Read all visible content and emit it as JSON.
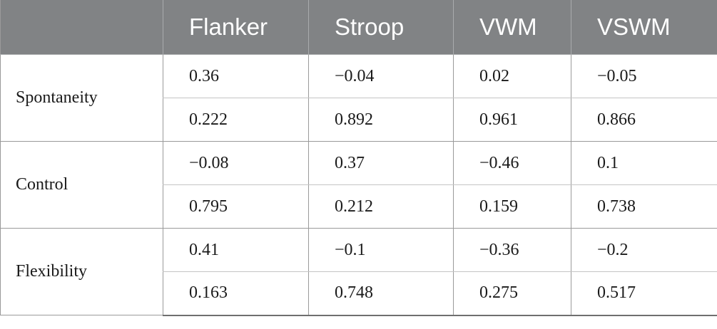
{
  "table": {
    "columns": [
      "",
      "Flanker",
      "Stroop",
      "VWM",
      "VSWM"
    ],
    "rows": [
      {
        "label": "Spontaneity",
        "values": [
          [
            "0.36",
            "−0.04",
            "0.02",
            "−0.05"
          ],
          [
            "0.222",
            "0.892",
            "0.961",
            "0.866"
          ]
        ]
      },
      {
        "label": "Control",
        "values": [
          [
            "−0.08",
            "0.37",
            "−0.46",
            "0.1"
          ],
          [
            "0.795",
            "0.212",
            "0.159",
            "0.738"
          ]
        ]
      },
      {
        "label": "Flexibility",
        "values": [
          [
            "0.41",
            "−0.1",
            "−0.36",
            "−0.2"
          ],
          [
            "0.163",
            "0.748",
            "0.275",
            "0.517"
          ]
        ]
      }
    ]
  }
}
